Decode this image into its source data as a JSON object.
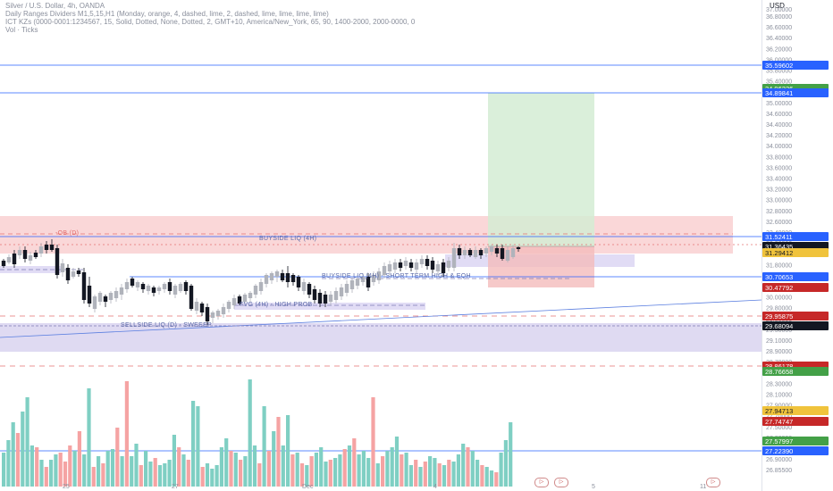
{
  "legend": {
    "line1": "Silver / U.S. Dollar, 4h, OANDA",
    "line2": "Daily Ranges Dividers M1,5,15,H1 (Monday, orange, 4, dashed, lime, 2, dashed, lime, lime, lime, lime)",
    "line3": "ICT KZs (0000-0001:1234567, 15, Solid, Dotted, None, Dotted, 2, GMT+10, America/New_York, 65, 90, 1400-2000, 2000-0000, 0",
    "line4": "Vol · Ticks"
  },
  "axis": {
    "currency": "USD",
    "top_label": "37.00000",
    "price_ticks": [
      "36.80000",
      "36.60000",
      "36.40000",
      "36.20000",
      "36.00000",
      "35.80000",
      "35.40000",
      "35.20000",
      "35.00000",
      "34.60000",
      "34.40000",
      "34.20000",
      "34.00000",
      "33.80000",
      "33.60000",
      "33.40000",
      "33.20000",
      "33.00000",
      "32.80000",
      "32.60000",
      "32.40000",
      "32.20000",
      "32.00000",
      "31.80000",
      "30.60000",
      "30.20000",
      "30.00000",
      "29.80000",
      "29.50000",
      "29.30000",
      "29.10000",
      "28.90000",
      "28.70000",
      "28.50000",
      "28.30000",
      "28.10000",
      "27.90000",
      "27.70000",
      "27.50000",
      "27.30000",
      "27.00000",
      "26.90000",
      "26.85500"
    ],
    "badges": [
      {
        "text": "35.59602",
        "color": "#2962ff",
        "text_color": "#ffffff"
      },
      {
        "text": "34.96236",
        "color": "#43a047",
        "text_color": "#ffffff"
      },
      {
        "text": "34.89841",
        "color": "#2962ff",
        "text_color": "#ffffff"
      },
      {
        "text": "31.52411",
        "color": "#2962ff",
        "text_color": "#ffffff"
      },
      {
        "text": "31.36435",
        "color": "#131722",
        "text_color": "#ffffff"
      },
      {
        "text": "31.29412",
        "color": "#f0c33c",
        "text_color": "#131722"
      },
      {
        "text": "30.70653",
        "color": "#2962ff",
        "text_color": "#ffffff"
      },
      {
        "text": "30.47792",
        "color": "#c62828",
        "text_color": "#ffffff"
      },
      {
        "text": "29.95875",
        "color": "#c62828",
        "text_color": "#ffffff"
      },
      {
        "text": "29.68094",
        "color": "#131722",
        "text_color": "#ffffff"
      },
      {
        "text": "28.86178",
        "color": "#c62828",
        "text_color": "#ffffff"
      },
      {
        "text": "28.76658",
        "color": "#43a047",
        "text_color": "#ffffff"
      },
      {
        "text": "27.94713",
        "color": "#f0c33c",
        "text_color": "#131722"
      },
      {
        "text": "27.74747",
        "color": "#c62828",
        "text_color": "#ffffff"
      },
      {
        "text": "27.57997",
        "color": "#43a047",
        "text_color": "#ffffff"
      },
      {
        "text": "27.22390",
        "color": "#2962ff",
        "text_color": "#ffffff"
      }
    ]
  },
  "annotations": {
    "ob_label": "-OB (D)",
    "buyside": "BUYSIDE LIQ (4H)",
    "buyside_short": "BUYSIDE LIQ (4H) - SHORT TERM HIGH & EQH",
    "fvg": "FVG (4H) - HIGH PROB",
    "sellside": "SELLSIDE LIQ (D) - SWEEEP"
  },
  "x_labels": [
    "25",
    "27",
    "Dec",
    "4",
    "5",
    "11"
  ],
  "buttons": {
    "btn1": "▷",
    "btn2": "▷",
    "btn3": "▷"
  },
  "colors": {
    "bull_candle": "#b0b3bb",
    "bear_candle": "#131722",
    "vol_up": "#7fcfc3",
    "vol_down": "#f5a3a3",
    "accent_blue": "#2962ff"
  }
}
